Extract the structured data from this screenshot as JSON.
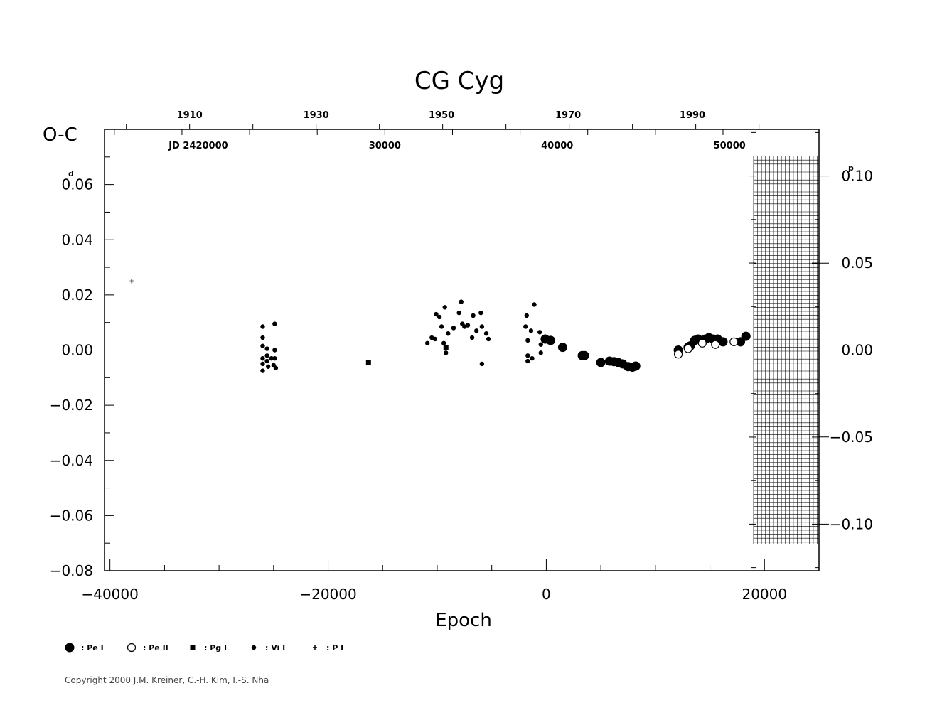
{
  "chart_data": {
    "type": "scatter",
    "title": "CG  Cyg",
    "ylabel": "O-C",
    "xlabel": "Epoch",
    "y_unit_mark": "d",
    "right_unit_mark": "p",
    "xlim": [
      -40500,
      25000
    ],
    "ylim": [
      -0.08,
      0.08
    ],
    "x_ticks": [
      {
        "value": -40000,
        "label": "−40000"
      },
      {
        "value": -20000,
        "label": "−20000"
      },
      {
        "value": 0,
        "label": "0"
      },
      {
        "value": 20000,
        "label": "20000"
      }
    ],
    "y_ticks": [
      {
        "value": 0.06,
        "label": "0.06"
      },
      {
        "value": 0.04,
        "label": "0.04"
      },
      {
        "value": 0.02,
        "label": "0.02"
      },
      {
        "value": 0.0,
        "label": "0.00"
      },
      {
        "value": -0.02,
        "label": "−0.02"
      },
      {
        "value": -0.04,
        "label": "−0.04"
      },
      {
        "value": -0.06,
        "label": "−0.06"
      },
      {
        "value": -0.08,
        "label": "−0.08"
      }
    ],
    "right_ticks": [
      {
        "value": 0.0631,
        "label": "0.10"
      },
      {
        "value": 0.0315,
        "label": "0.05"
      },
      {
        "value": 0.0,
        "label": "0.00"
      },
      {
        "value": -0.0315,
        "label": "−0.05"
      },
      {
        "value": -0.0631,
        "label": "−0.10"
      }
    ],
    "year_ticks": [
      {
        "value": -32700,
        "label": "1910"
      },
      {
        "value": -21100,
        "label": "1930"
      },
      {
        "value": -9600,
        "label": "1950"
      },
      {
        "value": 2000,
        "label": "1970"
      },
      {
        "value": 13400,
        "label": "1990"
      }
    ],
    "jd_ticks": [
      {
        "value": -31900,
        "label": "JD  2420000"
      },
      {
        "value": -14800,
        "label": "30000"
      },
      {
        "value": 1000,
        "label": "40000"
      },
      {
        "value": 16800,
        "label": "50000"
      }
    ],
    "hatched_region": [
      19000,
      25000
    ],
    "series": [
      {
        "name": ": Pe  I",
        "marker": "filled-circle-large",
        "points": [
          [
            -100,
            0.004
          ],
          [
            400,
            0.0035
          ],
          [
            1500,
            0.001
          ],
          [
            3300,
            -0.002
          ],
          [
            3500,
            -0.002
          ],
          [
            5000,
            -0.0045
          ],
          [
            5800,
            -0.004
          ],
          [
            6200,
            -0.0042
          ],
          [
            6600,
            -0.0045
          ],
          [
            7000,
            -0.005
          ],
          [
            7500,
            -0.006
          ],
          [
            7900,
            -0.0062
          ],
          [
            8200,
            -0.0058
          ],
          [
            12100,
            0.0
          ],
          [
            13000,
            0.001
          ],
          [
            13200,
            0.0015
          ],
          [
            13600,
            0.0035
          ],
          [
            13900,
            0.004
          ],
          [
            14300,
            0.0035
          ],
          [
            14600,
            0.004
          ],
          [
            14900,
            0.0045
          ],
          [
            15300,
            0.004
          ],
          [
            15700,
            0.004
          ],
          [
            16200,
            0.003
          ],
          [
            17800,
            0.003
          ],
          [
            18300,
            0.005
          ]
        ]
      },
      {
        "name": ": Pe  II",
        "marker": "open-circle",
        "points": [
          [
            12100,
            -0.0015
          ],
          [
            13000,
            0.0005
          ],
          [
            14300,
            0.0025
          ],
          [
            15500,
            0.002
          ],
          [
            17200,
            0.003
          ]
        ]
      },
      {
        "name": ": Pg  I",
        "marker": "filled-square",
        "points": [
          [
            -16300,
            -0.0045
          ],
          [
            -9200,
            0.001
          ]
        ]
      },
      {
        "name": ": Vi  I",
        "marker": "filled-circle-small",
        "points": [
          [
            -26000,
            0.0085
          ],
          [
            -26000,
            0.0045
          ],
          [
            -26000,
            0.0015
          ],
          [
            -26000,
            -0.003
          ],
          [
            -26000,
            -0.005
          ],
          [
            -26000,
            -0.0075
          ],
          [
            -25600,
            0.0005
          ],
          [
            -25600,
            -0.002
          ],
          [
            -25600,
            -0.004
          ],
          [
            -25500,
            -0.006
          ],
          [
            -25200,
            -0.003
          ],
          [
            -25000,
            -0.0055
          ],
          [
            -24900,
            0.0095
          ],
          [
            -24900,
            0.0
          ],
          [
            -24900,
            -0.003
          ],
          [
            -24800,
            -0.0065
          ],
          [
            -10900,
            0.0025
          ],
          [
            -10500,
            0.0045
          ],
          [
            -10200,
            0.004
          ],
          [
            -10100,
            0.013
          ],
          [
            -9800,
            0.012
          ],
          [
            -9600,
            0.0085
          ],
          [
            -9400,
            0.0025
          ],
          [
            -9300,
            0.0155
          ],
          [
            -9000,
            0.006
          ],
          [
            -9200,
            -0.001
          ],
          [
            -8500,
            0.008
          ],
          [
            -8000,
            0.0135
          ],
          [
            -7800,
            0.0175
          ],
          [
            -7700,
            0.0095
          ],
          [
            -7500,
            0.0085
          ],
          [
            -7200,
            0.009
          ],
          [
            -6800,
            0.0045
          ],
          [
            -6700,
            0.0125
          ],
          [
            -6400,
            0.007
          ],
          [
            -6000,
            0.0135
          ],
          [
            -5900,
            0.0085
          ],
          [
            -5900,
            -0.005
          ],
          [
            -5500,
            0.006
          ],
          [
            -5300,
            0.004
          ],
          [
            -1900,
            0.0085
          ],
          [
            -1800,
            0.0125
          ],
          [
            -1700,
            0.0035
          ],
          [
            -1700,
            -0.002
          ],
          [
            -1700,
            -0.004
          ],
          [
            -1400,
            0.007
          ],
          [
            -1300,
            -0.003
          ],
          [
            -1100,
            0.0165
          ],
          [
            -600,
            0.0065
          ],
          [
            -500,
            0.002
          ],
          [
            -500,
            -0.001
          ]
        ]
      },
      {
        "name": ": P  I",
        "marker": "plus",
        "points": [
          [
            -38000,
            0.025
          ]
        ]
      }
    ]
  },
  "copyright": "Copyright 2000 J.M. Kreiner, C.-H. Kim, I.-S. Nha"
}
